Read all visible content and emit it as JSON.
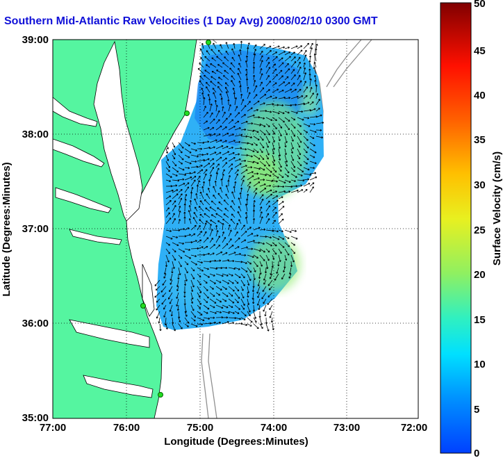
{
  "title": "Southern Mid-Atlantic Raw Velocities (1 Day Avg) 2008/02/10 0300 GMT",
  "xlabel": "Longitude (Degrees:Minutes)",
  "ylabel": "Latitude (Degrees:Minutes)",
  "x_ticks": [
    "77:00",
    "76:00",
    "75:00",
    "74:00",
    "73:00",
    "72:00"
  ],
  "y_ticks": [
    "39:00",
    "38:00",
    "37:00",
    "36:00",
    "35:00"
  ],
  "colorbar": {
    "label": "Surface Velocity (cm/s)",
    "ticks": [
      "50",
      "45",
      "40",
      "35",
      "30",
      "25",
      "20",
      "15",
      "10",
      "5",
      "0"
    ],
    "range": [
      0,
      50
    ],
    "colormap": "jet"
  },
  "colors": {
    "land": "#55f5a0",
    "water": "#ffffff",
    "bathymetry": "#909090",
    "station": "#22dd22",
    "title": "#1010d8"
  },
  "chart_data": {
    "type": "heatmap",
    "title": "Southern Mid-Atlantic Raw Velocities (1 Day Avg) 2008/02/10 0300 GMT",
    "xlabel": "Longitude (Degrees:Minutes)",
    "ylabel": "Latitude (Degrees:Minutes)",
    "xlim": [
      -77,
      -72
    ],
    "ylim": [
      35,
      39
    ],
    "grid": "dotted",
    "colorbar_range": [
      0,
      50
    ],
    "colorbar_label": "Surface Velocity (cm/s)"
  }
}
